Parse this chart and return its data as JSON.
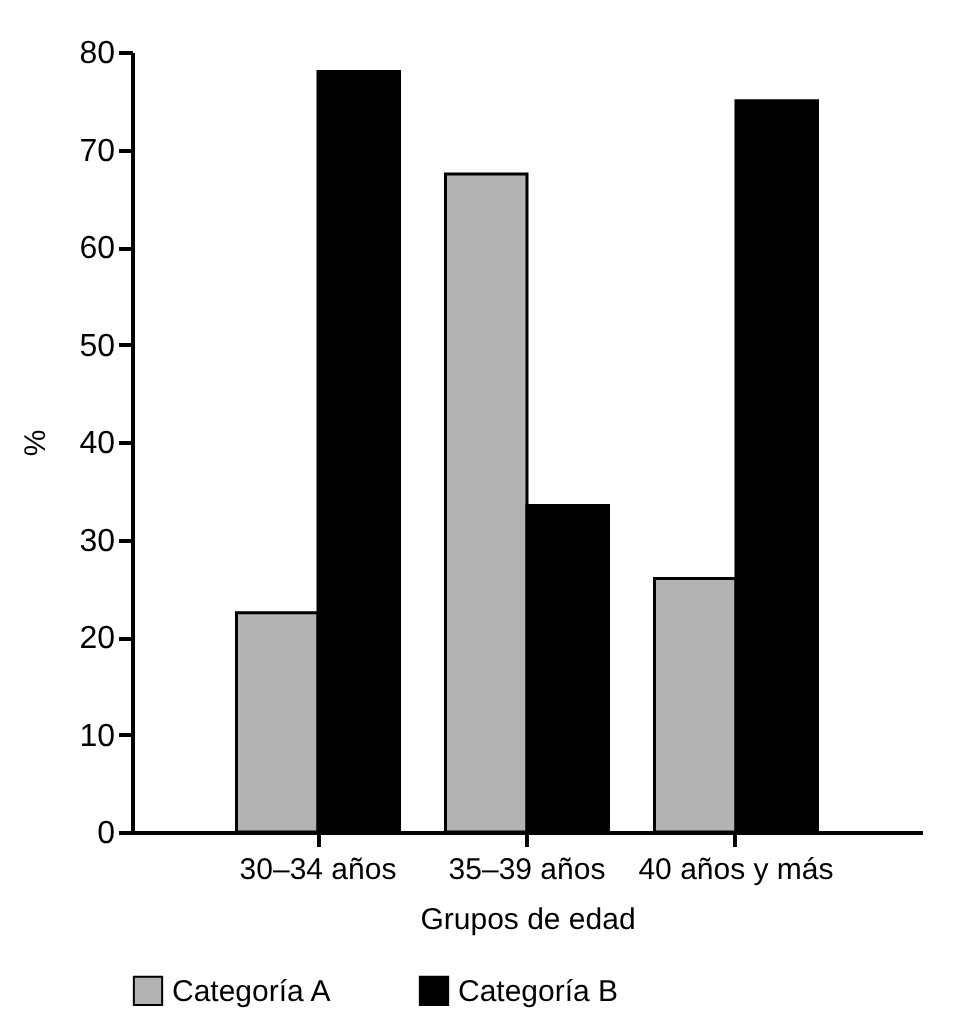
{
  "chart_data": {
    "type": "bar",
    "xlabel": "Grupos de edad",
    "ylabel": "%",
    "categories": [
      "30–34 años",
      "35–39 años",
      "40 años y más"
    ],
    "series": [
      {
        "name": "Categoría A",
        "color": "#b3b3b3",
        "values": [
          22.5,
          67.5,
          26
        ]
      },
      {
        "name": "Categoría B",
        "color": "#000000",
        "values": [
          78,
          33.5,
          75
        ]
      }
    ],
    "ylim": [
      0,
      80
    ],
    "yticks": [
      0,
      10,
      20,
      30,
      40,
      50,
      60,
      70,
      80
    ],
    "grid": false,
    "legend": "bottom"
  }
}
